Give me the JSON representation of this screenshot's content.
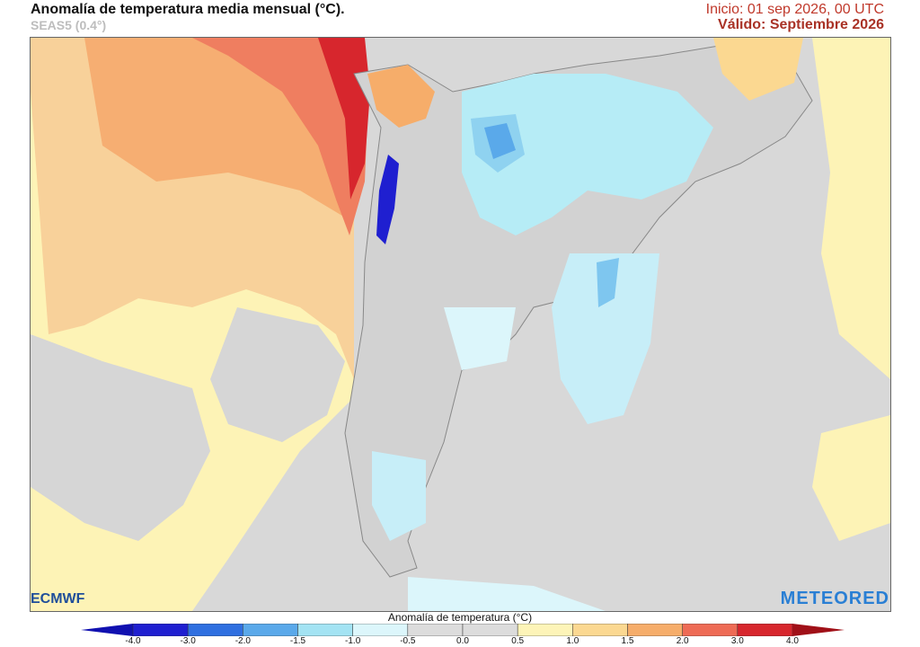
{
  "header": {
    "title": "Anomalía de temperatura media mensual (°C).",
    "subtitle": "SEAS5 (0.4°)",
    "init": "Inicio: 01 sep 2026, 00 UTC",
    "valid": "Válido: Septiembre 2026"
  },
  "logos": {
    "ecmwf": "ECMWF",
    "meteored": "METEORED"
  },
  "colorbar": {
    "title": "Anomalía de temperatura (°C)",
    "ticks": [
      "-4.0",
      "-3.0",
      "-2.0",
      "-1.5",
      "-1.0",
      "-0.5",
      "0.0",
      "0.5",
      "1.0",
      "1.5",
      "2.0",
      "3.0",
      "4.0"
    ],
    "colors": [
      "#1f1fd0",
      "#2f6fe0",
      "#5aa9ea",
      "#a3e3f3",
      "#dcf6fb",
      "#dcdcdc",
      "#dcdcdc",
      "#fdf4b8",
      "#fbd891",
      "#f6ad6a",
      "#ee6b55",
      "#d7262d"
    ]
  }
}
